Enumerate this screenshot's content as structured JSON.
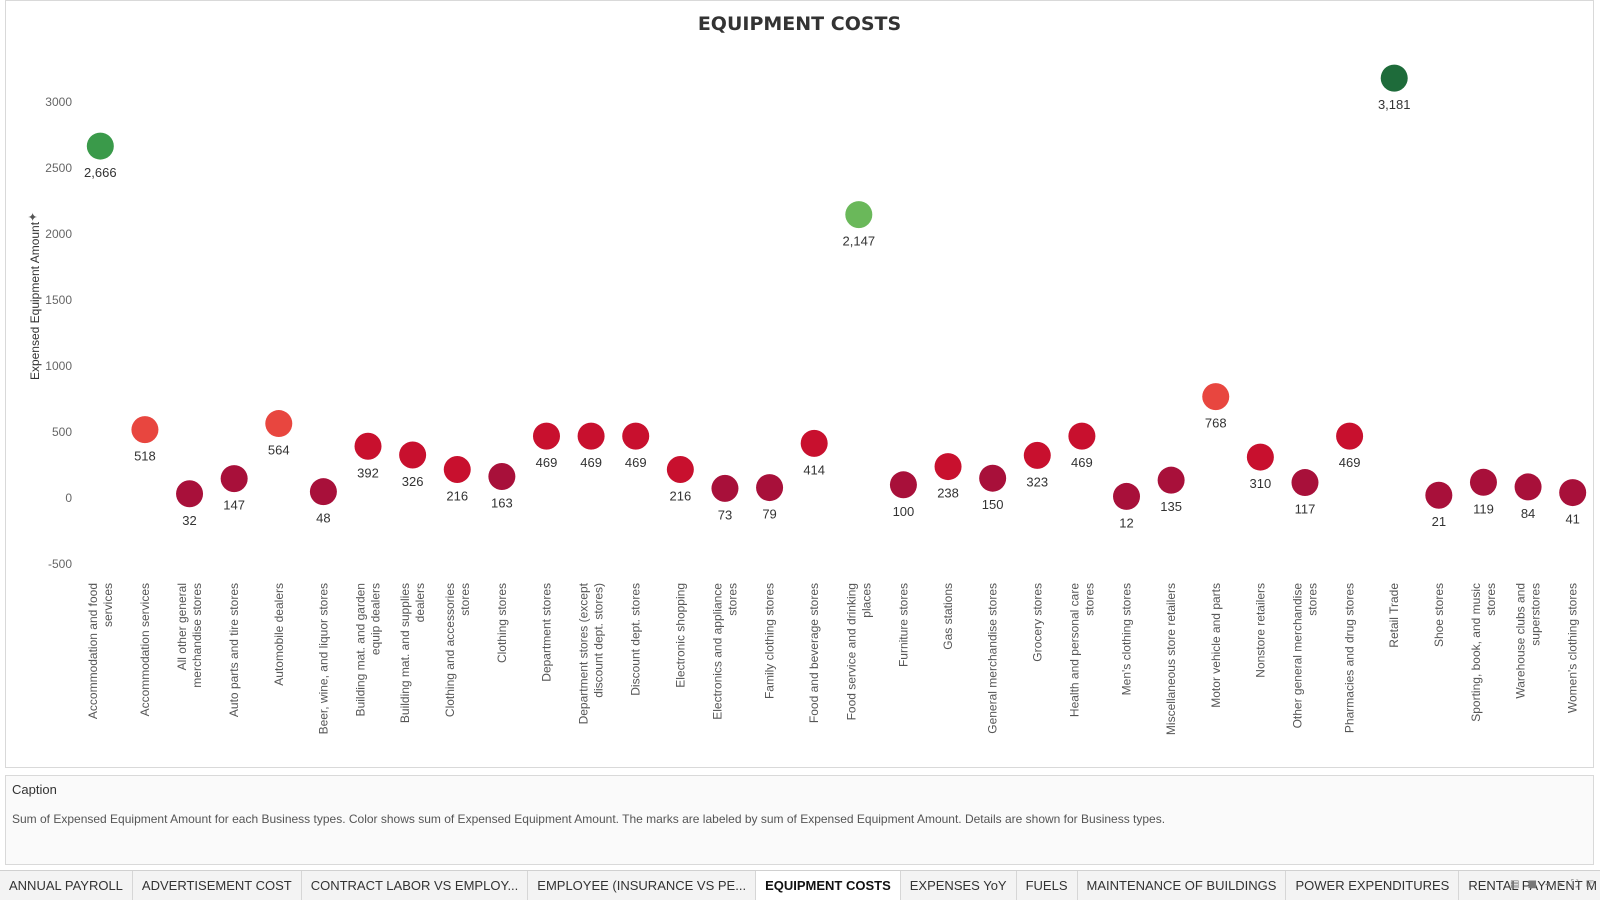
{
  "chart_data": {
    "type": "scatter",
    "title": "EQUIPMENT COSTS",
    "ylabel": "Expensed Equipment Amount",
    "ylim": [
      -500,
      3300
    ],
    "yticks": [
      -500,
      0,
      500,
      1000,
      1500,
      2000,
      2500,
      3000
    ],
    "grid": false,
    "categories": [
      "Accommodation and food services",
      "Accommodation services",
      "All other general merchandise stores",
      "Auto parts and tire stores",
      "Automobile dealers",
      "Beer, wine, and liquor stores",
      "Building mat. and garden equip dealers",
      "Building mat. and supplies dealers",
      "Clothing and accessories stores",
      "Clothing stores",
      "Department stores",
      "Department stores (except discount dept. stores)",
      "Discount dept. stores",
      "Electronic shopping",
      "Electronics and appliance stores",
      "Family clothing stores",
      "Food and beverage stores",
      "Food service and drinking places",
      "Furniture stores",
      "Gas stations",
      "General merchandise stores",
      "Grocery stores",
      "Health and personal care stores",
      "Men's clothing stores",
      "Miscellaneous store retailers",
      "Motor vehicle and parts",
      "Nonstore retailers",
      "Other general merchandise stores",
      "Pharmacies and drug stores",
      "Retail Trade",
      "Shoe stores",
      "Sporting, book, and music stores",
      "Warehouse clubs and superstores",
      "Women's clothing stores"
    ],
    "category_lines": [
      [
        "Accommodation and food",
        "services"
      ],
      [
        "Accommodation services"
      ],
      [
        "All other general",
        "merchandise stores"
      ],
      [
        "Auto parts and tire stores"
      ],
      [
        "Automobile dealers"
      ],
      [
        "Beer, wine, and liquor stores"
      ],
      [
        "Building mat. and garden",
        "equip dealers"
      ],
      [
        "Building mat. and supplies",
        "dealers"
      ],
      [
        "Clothing and accessories",
        "stores"
      ],
      [
        "Clothing stores"
      ],
      [
        "Department stores"
      ],
      [
        "Department stores (except",
        "discount dept. stores)"
      ],
      [
        "Discount dept. stores"
      ],
      [
        "Electronic shopping"
      ],
      [
        "Electronics and appliance",
        "stores"
      ],
      [
        "Family clothing stores"
      ],
      [
        "Food and beverage stores"
      ],
      [
        "Food service and drinking",
        "places"
      ],
      [
        "Furniture stores"
      ],
      [
        "Gas stations"
      ],
      [
        "General merchandise stores"
      ],
      [
        "Grocery stores"
      ],
      [
        "Health and personal care",
        "stores"
      ],
      [
        "Men's clothing stores"
      ],
      [
        "Miscellaneous store retailers"
      ],
      [
        "Motor vehicle and parts"
      ],
      [
        "Nonstore retailers"
      ],
      [
        "Other general merchandise",
        "stores"
      ],
      [
        "Pharmacies and drug stores"
      ],
      [
        "Retail Trade"
      ],
      [
        "Shoe stores"
      ],
      [
        "Sporting, book, and music",
        "stores"
      ],
      [
        "Warehouse clubs and",
        "superstores"
      ],
      [
        "Women's clothing stores"
      ]
    ],
    "values": [
      2666,
      518,
      32,
      147,
      564,
      48,
      392,
      326,
      216,
      163,
      469,
      469,
      469,
      216,
      73,
      79,
      414,
      2147,
      100,
      238,
      150,
      323,
      469,
      12,
      135,
      768,
      310,
      117,
      469,
      3181,
      21,
      119,
      84,
      41
    ],
    "labels": [
      "2,666",
      "518",
      "32",
      "147",
      "564",
      "48",
      "392",
      "326",
      "216",
      "163",
      "469",
      "469",
      "469",
      "216",
      "73",
      "79",
      "414",
      "2,147",
      "100",
      "238",
      "150",
      "323",
      "469",
      "12",
      "135",
      "768",
      "310",
      "117",
      "469",
      "3,181",
      "21",
      "119",
      "84",
      "41"
    ],
    "label_position": [
      "below",
      "below",
      "below",
      "below",
      "below",
      "below",
      "below",
      "below",
      "below",
      "below",
      "below",
      "below",
      "below",
      "below",
      "below",
      "below",
      "below",
      "below",
      "below",
      "below",
      "below",
      "below",
      "below",
      "below",
      "below",
      "below",
      "below",
      "below",
      "below",
      "below",
      "below",
      "below",
      "below",
      "below"
    ],
    "colors": {
      "very_high": "#1e6b3a",
      "high": "#3a9a4a",
      "mid_high": "#6ab85a",
      "mid": "#e8463f",
      "low": "#c8102e",
      "very_low": "#a8103a"
    }
  },
  "caption": {
    "title": "Caption",
    "text": "Sum of Expensed Equipment Amount for each Business types.  Color shows sum of Expensed Equipment Amount.  The marks are labeled by sum of Expensed Equipment Amount.  Details are shown for Business types."
  },
  "tabs": [
    {
      "label": "ANNUAL PAYROLL",
      "active": false
    },
    {
      "label": "ADVERTISEMENT COST",
      "active": false
    },
    {
      "label": "CONTRACT LABOR VS EMPLOY...",
      "active": false
    },
    {
      "label": "EMPLOYEE (INSURANCE VS PE...",
      "active": false
    },
    {
      "label": "EQUIPMENT COSTS",
      "active": true
    },
    {
      "label": "EXPENSES YoY",
      "active": false
    },
    {
      "label": "FUELS",
      "active": false
    },
    {
      "label": "MAINTENANCE OF BUILDINGS",
      "active": false
    },
    {
      "label": "POWER EXPENDITURES",
      "active": false
    },
    {
      "label": "RENTAL PAYMENT M",
      "active": false
    }
  ],
  "tab_controls": [
    "list-view-icon",
    "grid-view-icon",
    "prev-arrow-icon",
    "next-arrow-icon",
    "fullscreen-icon",
    "present-icon"
  ]
}
